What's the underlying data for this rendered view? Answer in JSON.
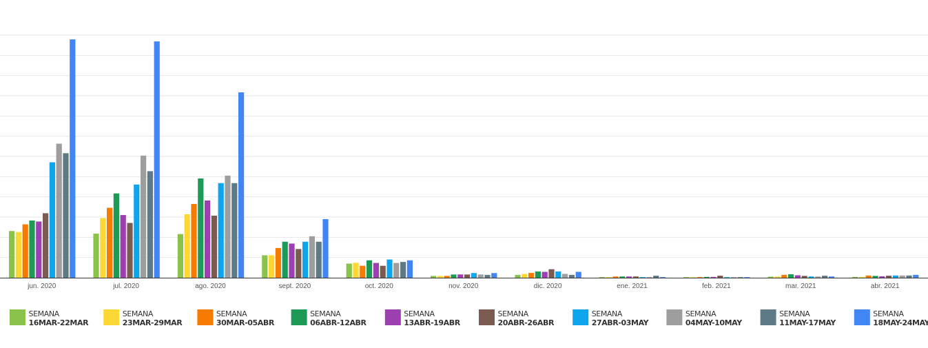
{
  "chart_data": {
    "type": "bar",
    "categories": [
      "jun. 2020",
      "jul. 2020",
      "ago. 2020",
      "sept. 2020",
      "oct. 2020",
      "nov. 2020",
      "dic. 2020",
      "ene. 2021",
      "feb. 2021",
      "mar. 2021",
      "abr. 2021"
    ],
    "ylim": [
      0,
      120
    ],
    "grid": true,
    "legend_position": "bottom",
    "series": [
      {
        "name": "SEMANA 16MAR-22MAR",
        "label_top": "SEMANA",
        "label_bottom": "16MAR-22MAR",
        "color": "#8bc34a",
        "values": [
          23.1,
          21.8,
          21.6,
          11.1,
          7.0,
          0.9,
          1.4,
          0.3,
          0.2,
          0.5,
          0.4
        ]
      },
      {
        "name": "SEMANA 23MAR-29MAR",
        "label_top": "SEMANA",
        "label_bottom": "23MAR-29MAR",
        "color": "#fdd835",
        "values": [
          22.6,
          29.5,
          31.4,
          11.1,
          7.4,
          0.9,
          1.9,
          0.3,
          0.2,
          0.6,
          0.4
        ]
      },
      {
        "name": "SEMANA 30MAR-05ABR",
        "label_top": "SEMANA",
        "label_bottom": "30MAR-05ABR",
        "color": "#f57c00",
        "values": [
          26.4,
          34.6,
          36.5,
          14.7,
          5.9,
          0.9,
          2.4,
          0.6,
          0.3,
          1.4,
          1.1
        ]
      },
      {
        "name": "SEMANA 06ABR-12ABR",
        "label_top": "SEMANA",
        "label_bottom": "06ABR-12ABR",
        "color": "#1e9a57",
        "values": [
          28.3,
          41.7,
          49.1,
          17.8,
          8.6,
          1.6,
          3.1,
          0.6,
          0.4,
          1.7,
          0.9
        ]
      },
      {
        "name": "SEMANA 13ABR-19ABR",
        "label_top": "SEMANA",
        "label_bottom": "13ABR-19ABR",
        "color": "#9c3fb0",
        "values": [
          27.8,
          31.0,
          38.2,
          16.9,
          7.3,
          1.6,
          2.9,
          0.6,
          0.4,
          1.2,
          0.7
        ]
      },
      {
        "name": "SEMANA 20ABR-26ABR",
        "label_top": "SEMANA",
        "label_bottom": "20ABR-26ABR",
        "color": "#7b5a50",
        "values": [
          31.9,
          27.1,
          30.7,
          14.2,
          5.9,
          1.6,
          4.2,
          0.6,
          1.0,
          0.9,
          1.0
        ]
      },
      {
        "name": "SEMANA 27ABR-03MAY",
        "label_top": "SEMANA",
        "label_bottom": "27ABR-03MAY",
        "color": "#0ea5ec",
        "values": [
          57.1,
          46.1,
          46.8,
          17.8,
          9.0,
          2.3,
          3.1,
          0.3,
          0.2,
          0.6,
          1.1
        ]
      },
      {
        "name": "SEMANA 04MAY-10MAY",
        "label_top": "SEMANA",
        "label_bottom": "04MAY-10MAY",
        "color": "#9e9e9e",
        "values": [
          66.3,
          60.4,
          50.5,
          20.5,
          7.3,
          1.6,
          1.9,
          0.3,
          0.2,
          0.6,
          1.1
        ]
      },
      {
        "name": "SEMANA 11MAY-17MAY",
        "label_top": "SEMANA",
        "label_bottom": "11MAY-17MAY",
        "color": "#5f7a87",
        "values": [
          61.6,
          52.7,
          46.8,
          17.8,
          7.8,
          1.4,
          1.4,
          1.0,
          0.2,
          1.0,
          1.1
        ]
      },
      {
        "name": "SEMANA 18MAY-24MAY",
        "label_top": "SEMANA",
        "label_bottom": "18MAY-24MAY",
        "color": "#4285f4",
        "values": [
          117.9,
          116.9,
          91.7,
          29.0,
          8.6,
          2.3,
          2.9,
          0.3,
          0.2,
          0.6,
          1.4
        ]
      }
    ]
  }
}
